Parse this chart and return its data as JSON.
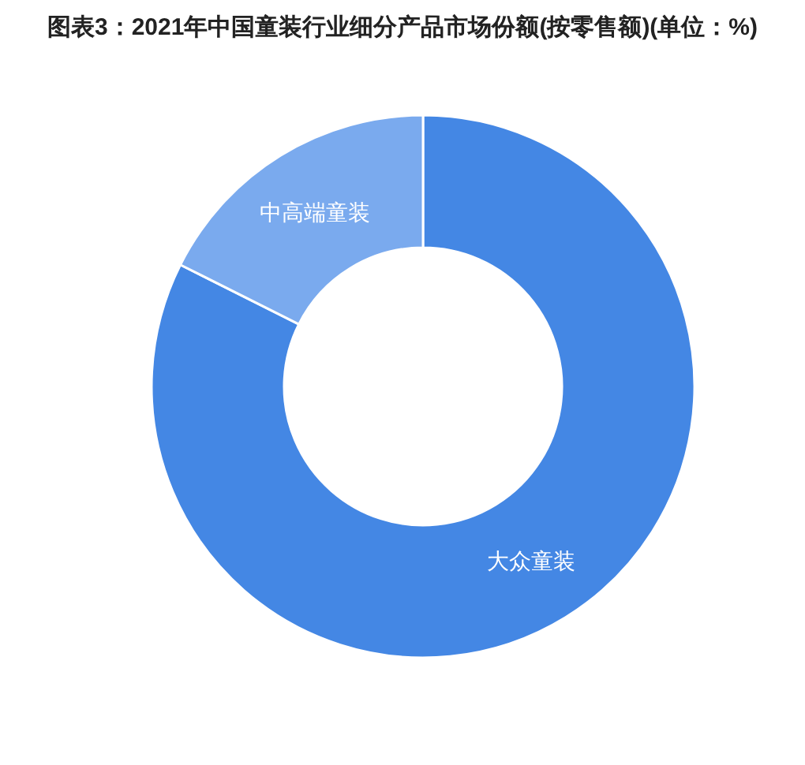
{
  "chart_data": {
    "type": "donut",
    "title": "图表3：2021年中国童装行业细分产品市场份额(按零售额)(单位：%)",
    "categories": [
      "大众童装",
      "中高端童装"
    ],
    "values": [
      82.4,
      17.6
    ],
    "colors": [
      "#4487e4",
      "#7aaaee"
    ]
  }
}
